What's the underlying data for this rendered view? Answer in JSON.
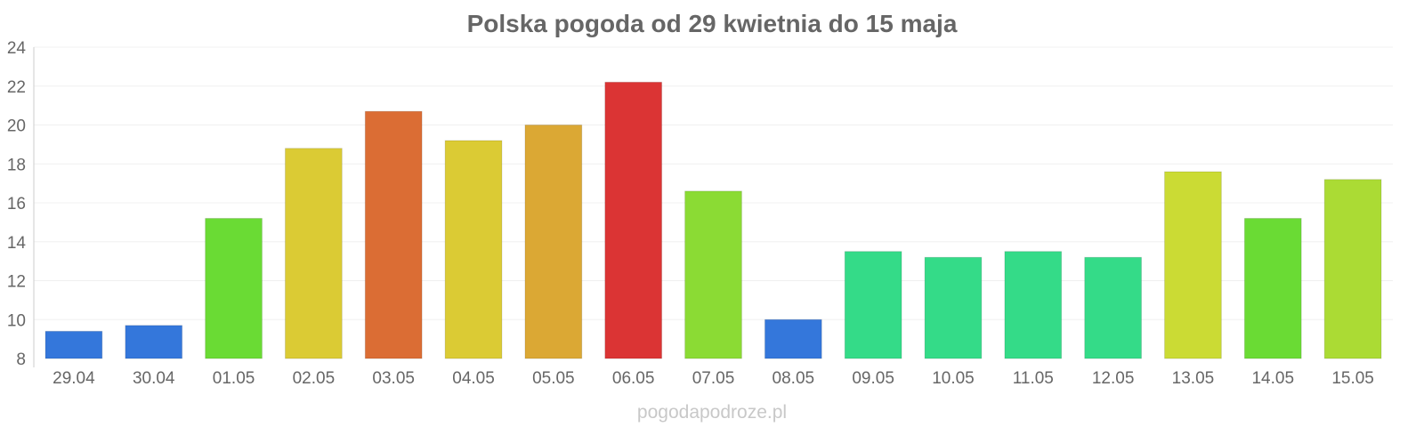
{
  "chart_data": {
    "type": "bar",
    "title": "Polska pogoda od 29 kwietnia do 15 maja",
    "xlabel": "",
    "ylabel": "",
    "ylim": [
      8,
      24
    ],
    "yticks": [
      8,
      10,
      12,
      14,
      16,
      18,
      20,
      22,
      24
    ],
    "grid": true,
    "legend": "none",
    "categories": [
      "29.04",
      "30.04",
      "01.05",
      "02.05",
      "03.05",
      "04.05",
      "05.05",
      "06.05",
      "07.05",
      "08.05",
      "09.05",
      "10.05",
      "11.05",
      "12.05",
      "13.05",
      "14.05",
      "15.05"
    ],
    "values": [
      9.4,
      9.7,
      15.2,
      18.8,
      20.7,
      19.2,
      20.0,
      22.2,
      16.6,
      10.0,
      13.5,
      13.2,
      13.5,
      13.2,
      17.6,
      15.2,
      17.2
    ],
    "colors": [
      "#3477db",
      "#3477db",
      "#6adb34",
      "#dbcb34",
      "#db6d34",
      "#dbcb34",
      "#dba834",
      "#db3434",
      "#8bdb34",
      "#3477db",
      "#34db88",
      "#34db88",
      "#34db88",
      "#34db88",
      "#cbdb34",
      "#6adb34",
      "#abdb34"
    ]
  },
  "watermark": "pogodapodroze.pl"
}
